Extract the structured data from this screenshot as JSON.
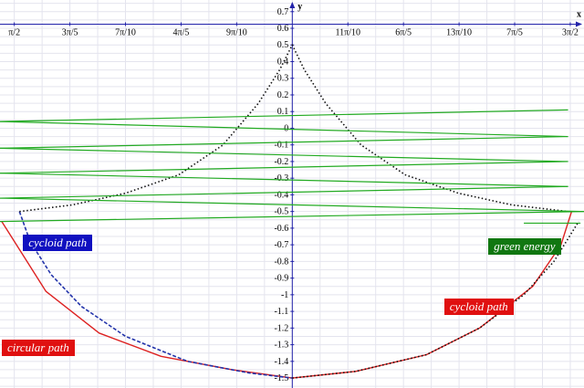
{
  "chart_data": {
    "type": "line",
    "x_axis": {
      "label": "x",
      "range": [
        1.49,
        4.79
      ],
      "ticks": [
        {
          "value": 1.5708,
          "label": "π/2"
        },
        {
          "value": 1.885,
          "label": "3π/5"
        },
        {
          "value": 2.1991,
          "label": "7π/10"
        },
        {
          "value": 2.5133,
          "label": "4π/5"
        },
        {
          "value": 2.8274,
          "label": "9π/10"
        },
        {
          "value": 3.4558,
          "label": "11π/10"
        },
        {
          "value": 3.7699,
          "label": "6π/5"
        },
        {
          "value": 4.0841,
          "label": "13π/10"
        },
        {
          "value": 4.3982,
          "label": "7π/5"
        },
        {
          "value": 4.7124,
          "label": "3π/2"
        }
      ]
    },
    "y_axis": {
      "label": "y",
      "range": [
        -1.56,
        0.77
      ],
      "ticks": [
        "0.7",
        "0.6",
        "0.5",
        "0.4",
        "0.3",
        "0.2",
        "0.1",
        "0",
        "-0.1",
        "-0.2",
        "-0.3",
        "-0.4",
        "-0.5",
        "-0.6",
        "-0.7",
        "-0.8",
        "-0.9",
        "-1",
        "-1.1",
        "-1.2",
        "-1.3",
        "-1.4",
        "-1.5"
      ]
    },
    "grid": true,
    "series": [
      {
        "name": "circular path",
        "style": "solid",
        "color": "#dd2222",
        "points": [
          [
            1.5,
            -0.56
          ],
          [
            1.75,
            -0.98
          ],
          [
            2.05,
            -1.23
          ],
          [
            2.4,
            -1.37
          ],
          [
            2.8,
            -1.45
          ],
          [
            3.1416,
            -1.5
          ],
          [
            3.5,
            -1.46
          ],
          [
            3.9,
            -1.36
          ],
          [
            4.2,
            -1.2
          ],
          [
            4.5,
            -0.95
          ],
          [
            4.66,
            -0.7
          ],
          [
            4.72,
            -0.5
          ]
        ]
      },
      {
        "name": "cycloid path (blue dashed)",
        "style": "dashed",
        "color": "#2233aa",
        "points": [
          [
            1.6,
            -0.5
          ],
          [
            1.66,
            -0.68
          ],
          [
            1.78,
            -0.88
          ],
          [
            1.95,
            -1.07
          ],
          [
            2.2,
            -1.25
          ],
          [
            2.55,
            -1.4
          ],
          [
            2.9,
            -1.47
          ],
          [
            3.1416,
            -1.5
          ]
        ]
      },
      {
        "name": "cycloid path (black dotted, lower)",
        "style": "dotted",
        "color": "#111111",
        "points": [
          [
            3.1416,
            -1.5
          ],
          [
            3.5,
            -1.46
          ],
          [
            3.9,
            -1.36
          ],
          [
            4.2,
            -1.2
          ],
          [
            4.45,
            -1.0
          ],
          [
            4.62,
            -0.8
          ],
          [
            4.76,
            -0.56
          ]
        ]
      },
      {
        "name": "cycloid path (black dotted, upper)",
        "style": "dotted",
        "color": "#111111",
        "points": [
          [
            1.6,
            -0.5
          ],
          [
            1.9,
            -0.46
          ],
          [
            2.2,
            -0.39
          ],
          [
            2.5,
            -0.28
          ],
          [
            2.75,
            -0.1
          ],
          [
            2.95,
            0.15
          ],
          [
            3.07,
            0.35
          ],
          [
            3.1416,
            0.5
          ],
          [
            3.21,
            0.35
          ],
          [
            3.33,
            0.15
          ],
          [
            3.53,
            -0.1
          ],
          [
            3.78,
            -0.28
          ],
          [
            4.08,
            -0.39
          ],
          [
            4.38,
            -0.46
          ],
          [
            4.7,
            -0.5
          ]
        ]
      },
      {
        "name": "green energy",
        "style": "solid",
        "color": "#22aa22",
        "segments": [
          [
            [
              1.49,
              0.04
            ],
            [
              4.7,
              0.11
            ]
          ],
          [
            [
              1.49,
              0.04
            ],
            [
              4.7,
              -0.05
            ]
          ],
          [
            [
              1.49,
              -0.12
            ],
            [
              4.7,
              -0.05
            ]
          ],
          [
            [
              1.49,
              -0.12
            ],
            [
              4.7,
              -0.2
            ]
          ],
          [
            [
              1.49,
              -0.27
            ],
            [
              4.7,
              -0.2
            ]
          ],
          [
            [
              1.49,
              -0.27
            ],
            [
              4.7,
              -0.35
            ]
          ],
          [
            [
              1.49,
              -0.42
            ],
            [
              4.7,
              -0.35
            ]
          ],
          [
            [
              1.49,
              -0.42
            ],
            [
              4.79,
              -0.5
            ]
          ],
          [
            [
              1.49,
              -0.56
            ],
            [
              4.79,
              -0.5
            ]
          ],
          [
            [
              4.45,
              -0.57
            ],
            [
              4.77,
              -0.57
            ]
          ]
        ]
      }
    ],
    "annotations": [
      {
        "text": "cycloid path",
        "bg": "#1010c0",
        "x": 1.62,
        "y": -0.64
      },
      {
        "text": "green energy",
        "bg": "#117711",
        "x": 4.25,
        "y": -0.66
      },
      {
        "text": "cycloid path",
        "bg": "#e01010",
        "x": 4.0,
        "y": -1.02
      },
      {
        "text": "circular path",
        "bg": "#e01010",
        "x": 1.5,
        "y": -1.27
      }
    ]
  }
}
